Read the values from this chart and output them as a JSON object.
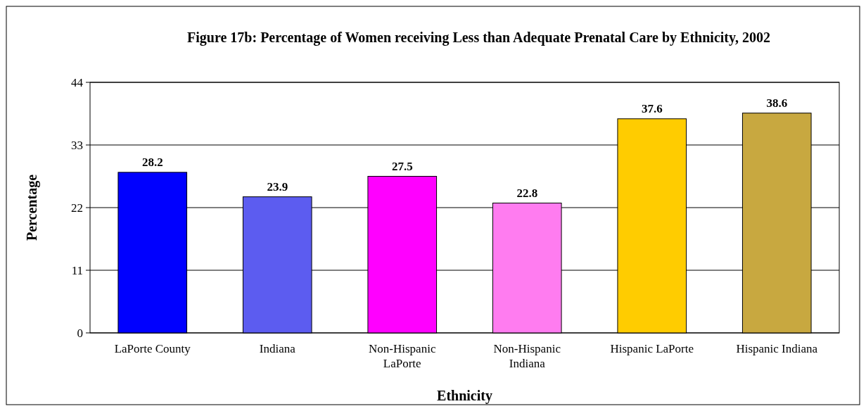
{
  "chart_data": {
    "type": "bar",
    "title": "Figure 17b: Percentage of Women receiving Less than Adequate Prenatal Care by Ethnicity, 2002",
    "xlabel": "Ethnicity",
    "ylabel": "Percentage",
    "categories": [
      "LaPorte County",
      "Indiana",
      "Non-Hispanic LaPorte",
      "Non-Hispanic Indiana",
      "Hispanic LaPorte",
      "Hispanic Indiana"
    ],
    "values": [
      28.2,
      23.9,
      27.5,
      22.8,
      37.6,
      38.6
    ],
    "colors": [
      "#0000ff",
      "#5c5cf0",
      "#ff00ff",
      "#ff7cf0",
      "#ffcc00",
      "#c8a840"
    ],
    "ylim": [
      0,
      44
    ],
    "yticks": [
      0,
      11,
      22,
      33,
      44
    ],
    "grid": "y",
    "data_labels": true
  }
}
